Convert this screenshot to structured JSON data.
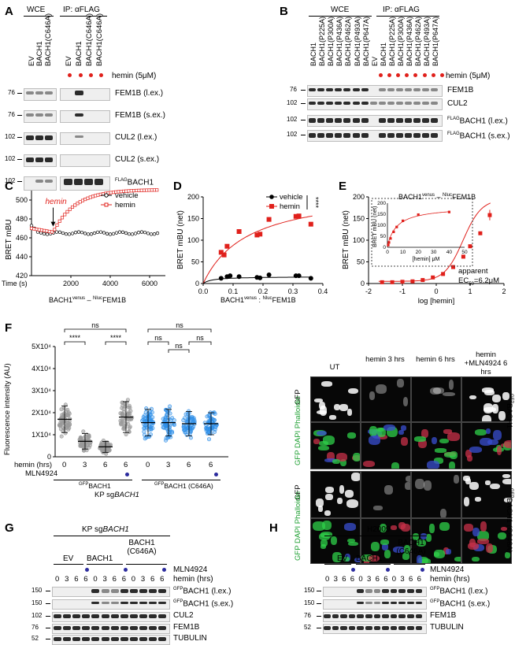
{
  "panels": {
    "A": "A",
    "B": "B",
    "C": "C",
    "D": "D",
    "E": "E",
    "F": "F",
    "G": "G",
    "H": "H"
  },
  "A": {
    "wce": "WCE",
    "ip": "IP: αFLAG",
    "lanes": [
      "EV",
      "BACH1",
      "BACH1(C646A)",
      "EV",
      "BACH1",
      "BACH1(C646A)",
      "BACH1(C646A)"
    ],
    "treatment": "hemin (5μM)",
    "blots": [
      {
        "mw": "76",
        "label": "FEM1B (l.ex.)"
      },
      {
        "mw": "76",
        "label": "FEM1B (s.ex.)"
      },
      {
        "mw": "102",
        "label": "CUL2 (l.ex.)"
      },
      {
        "mw": "102",
        "label": "CUL2 (s.ex.)"
      },
      {
        "mw": "102",
        "label_sup": "FLAG",
        "label": "BACH1"
      }
    ]
  },
  "B": {
    "wce": "WCE",
    "ip": "IP: αFLAG",
    "lanes": [
      "BACH1",
      "BACH1(P225A)",
      "BACH1(P300A)",
      "BACH1(P436A)",
      "BACH1(P462A)",
      "BACH1(P493A)",
      "BACH1(P647A)",
      "EV",
      "BACH1",
      "BACH1(P225A)",
      "BACH1(P300A)",
      "BACH1(P436A)",
      "BACH1(P462A)",
      "BACH1(P493A)",
      "BACH1(P647A)"
    ],
    "treatment": "hemin (5μM)",
    "blots": [
      {
        "mw": "76",
        "label": "FEM1B"
      },
      {
        "mw": "102",
        "label": "CUL2"
      },
      {
        "mw": "102",
        "label_sup": "FLAG",
        "label": "BACH1 (l.ex.)"
      },
      {
        "mw": "102",
        "label_sup": "FLAG",
        "label": "BACH1 (s.ex.)"
      }
    ]
  },
  "C": {
    "ylabel": "BRET mBU",
    "xlabel": "Time (s)",
    "yticks": [
      "500",
      "480",
      "460",
      "440",
      "420"
    ],
    "xticks": [
      "2000",
      "4000",
      "6000"
    ],
    "legend": [
      "vehicle",
      "hemin"
    ],
    "annotation": "hemin",
    "caption": "BACH1venus – NlucFEM1B",
    "caption_parts": [
      "BACH1",
      "venus",
      " – ",
      "Nluc",
      "FEM1B"
    ]
  },
  "D": {
    "ylabel": "BRET mBU (net)",
    "yticks": [
      "200",
      "150",
      "100",
      "50",
      "0"
    ],
    "xticks": [
      "0.0",
      "0.1",
      "0.2",
      "0.3",
      "0.4"
    ],
    "legend": [
      "vehicle",
      "hemin"
    ],
    "sig": "****",
    "xlabel_parts": [
      "BACH1",
      "venus",
      " : ",
      "Nluc",
      "FEM1B"
    ]
  },
  "E": {
    "ylabel": "BRET mBU (net)",
    "yticks": [
      "200",
      "150",
      "100",
      "50",
      "0"
    ],
    "xticks": [
      "-2",
      "-1",
      "0",
      "1",
      "2"
    ],
    "xlabel": "log [hemin]",
    "title_parts": [
      "BACH1",
      "venus",
      " – ",
      "Nluc",
      "FEM1B"
    ],
    "inset_ylabel": "BRET mBU (net)",
    "inset_yticks": [
      "200",
      "150",
      "100",
      "50",
      "0"
    ],
    "inset_xticks": [
      "0",
      "10",
      "20",
      "30",
      "40",
      "50"
    ],
    "inset_xlabel": "[hemin] μM",
    "apparent": "apparent",
    "ec50_pre": "EC",
    "ec50_sub": "50",
    "ec50_post": "=6.2μM"
  },
  "F": {
    "ylabel": "Fluorescence intensity (AU)",
    "yticks": [
      "5X10⁴",
      "4X10⁴",
      "3X10⁴",
      "2X10⁴",
      "1X10⁴",
      "0"
    ],
    "hemin_label": "hemin (hrs)",
    "mln_label": "MLN4924",
    "hemin_values": [
      "0",
      "3",
      "6",
      "6",
      "0",
      "3",
      "6",
      "6"
    ],
    "groups": [
      {
        "sup": "GFP",
        "name": "BACH1"
      },
      {
        "sup": "GFP",
        "name": "BACH1 (C646A)"
      }
    ],
    "footer_pre": "KP sg",
    "footer_gene": "BACH1",
    "sig_top": [
      "ns",
      "ns"
    ],
    "sig_mid": [
      "****",
      "****",
      "ns",
      "ns",
      "ns"
    ],
    "micro_cols": [
      "UT",
      "hemin 3 hrs",
      "hemin 6 hrs",
      "hemin +MLN4924 6 hrs"
    ],
    "micro_rows": [
      "GFP",
      "GFP DAPI Phalloidin",
      "GFP",
      "GFP DAPI Phalloidin"
    ],
    "micro_side": [
      {
        "sup": "GFP",
        "name": "BACH1"
      },
      {
        "sup": "GFP",
        "name": "BACH1 (C646A)"
      }
    ]
  },
  "G": {
    "cell": "KP sg",
    "gene": "BACH1",
    "groups": [
      "EV",
      "BACH1",
      "BACH1 (C646A)"
    ],
    "mln_label": "MLN4924",
    "hemin_label": "hemin (hrs)",
    "hemin_values": [
      "0",
      "3",
      "6",
      "6",
      "0",
      "3",
      "6",
      "6",
      "0",
      "3",
      "6",
      "6"
    ],
    "blots": [
      {
        "mw": "150",
        "sup": "GFP",
        "label": "BACH1 (l.ex.)"
      },
      {
        "mw": "150",
        "sup": "GFP",
        "label": "BACH1 (s.ex.)"
      },
      {
        "mw": "102",
        "sup": "",
        "label": "CUL2"
      },
      {
        "mw": "76",
        "sup": "",
        "label": "FEM1B"
      },
      {
        "mw": "52",
        "sup": "",
        "label": "TUBULIN"
      }
    ]
  },
  "H": {
    "cell": "H2009",
    "groups": [
      "EV",
      "BACH1",
      "BACH1 (C646A)"
    ],
    "mln_label": "MLN4924",
    "hemin_label": "hemin (hrs)",
    "hemin_values": [
      "0",
      "3",
      "6",
      "6",
      "0",
      "3",
      "6",
      "6",
      "0",
      "3",
      "6",
      "6"
    ],
    "blots": [
      {
        "mw": "150",
        "sup": "GFP",
        "label": "BACH1 (l.ex.)"
      },
      {
        "mw": "150",
        "sup": "GFP",
        "label": "BACH1 (s.ex.)"
      },
      {
        "mw": "76",
        "sup": "",
        "label": "FEM1B"
      },
      {
        "mw": "52",
        "sup": "",
        "label": "TUBULIN"
      }
    ]
  },
  "colors": {
    "hemin": "#e0201b",
    "vehicle": "#000000",
    "grey": "#9a9a9a",
    "blue": "#2f8fe8",
    "mln": "#2b2b9e"
  }
}
